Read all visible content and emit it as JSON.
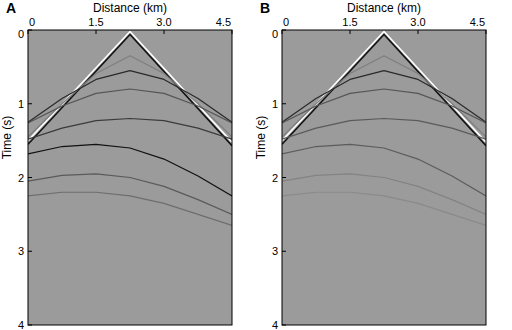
{
  "chart_data": [
    {
      "type": "line",
      "title": "A",
      "xlabel": "Distance (km)",
      "ylabel": "Time (s)",
      "xlim": [
        0,
        4.5
      ],
      "ylim": [
        0,
        4
      ],
      "xticks": [
        0,
        1.5,
        {
          "value": 3,
          "label": "3.0"
        },
        4.5
      ],
      "yticks": [
        0,
        1,
        2,
        3,
        4
      ],
      "series": [
        {
          "color": "#ffffff",
          "x": [
            0,
            2.25,
            4.5
          ],
          "values": [
            1.5,
            0.02,
            1.52
          ]
        },
        {
          "color": "#111111",
          "x": [
            0,
            2.25,
            4.5
          ],
          "values": [
            1.55,
            0.06,
            1.57
          ]
        },
        {
          "color": "#7e7e7e",
          "x": [
            0,
            0.75,
            1.5,
            2.25,
            3,
            3.75,
            4.5
          ],
          "values": [
            1.45,
            1.0,
            0.59,
            0.35,
            0.59,
            1.0,
            1.45
          ]
        },
        {
          "color": "#2a2a2a",
          "x": [
            0,
            0.75,
            1.5,
            2.25,
            3,
            3.75,
            4.5
          ],
          "values": [
            1.25,
            0.93,
            0.67,
            0.55,
            0.67,
            0.93,
            1.25
          ]
        },
        {
          "color": "#555555",
          "x": [
            0,
            0.75,
            1.5,
            2.25,
            3,
            3.75,
            4.5
          ],
          "values": [
            1.26,
            1.03,
            0.86,
            0.8,
            0.86,
            1.03,
            1.26
          ]
        },
        {
          "color": "#3a3a3a",
          "x": [
            0,
            0.75,
            1.5,
            2.25,
            3,
            3.75,
            4.5
          ],
          "values": [
            1.48,
            1.33,
            1.23,
            1.2,
            1.23,
            1.33,
            1.48
          ]
        },
        {
          "color": "#111111",
          "x": [
            0,
            0.75,
            1.5,
            2.25,
            3,
            3.75,
            4.5
          ],
          "values": [
            1.68,
            1.58,
            1.55,
            1.6,
            1.75,
            1.98,
            2.25
          ]
        },
        {
          "color": "#5a5a5a",
          "x": [
            0,
            0.75,
            1.5,
            2.25,
            3,
            3.75,
            4.5
          ],
          "values": [
            2.05,
            1.97,
            1.95,
            2.0,
            2.12,
            2.3,
            2.5
          ]
        },
        {
          "color": "#6e6e6e",
          "x": [
            0,
            0.75,
            1.5,
            2.25,
            3,
            3.75,
            4.5
          ],
          "values": [
            2.25,
            2.2,
            2.2,
            2.25,
            2.35,
            2.5,
            2.65
          ]
        }
      ]
    },
    {
      "type": "line",
      "title": "B",
      "xlabel": "Distance (km)",
      "ylabel": "Time (s)",
      "xlim": [
        0,
        4.5
      ],
      "ylim": [
        0,
        4
      ],
      "xticks": [
        0,
        1.5,
        {
          "value": 3,
          "label": "3.0"
        },
        4.5
      ],
      "yticks": [
        0,
        1,
        2,
        3,
        4
      ],
      "series": [
        {
          "color": "#ffffff",
          "x": [
            0,
            2.25,
            4.5
          ],
          "values": [
            1.5,
            0.02,
            1.52
          ]
        },
        {
          "color": "#111111",
          "x": [
            0,
            2.25,
            4.5
          ],
          "values": [
            1.55,
            0.06,
            1.57
          ]
        },
        {
          "color": "#7e7e7e",
          "x": [
            0,
            0.75,
            1.5,
            2.25,
            3,
            3.75,
            4.5
          ],
          "values": [
            1.45,
            1.0,
            0.59,
            0.35,
            0.59,
            1.0,
            1.45
          ]
        },
        {
          "color": "#2a2a2a",
          "x": [
            0,
            0.75,
            1.5,
            2.25,
            3,
            3.75,
            4.5
          ],
          "values": [
            1.25,
            0.93,
            0.67,
            0.55,
            0.67,
            0.93,
            1.25
          ]
        },
        {
          "color": "#555555",
          "x": [
            0,
            0.75,
            1.5,
            2.25,
            3,
            3.75,
            4.5
          ],
          "values": [
            1.26,
            1.03,
            0.86,
            0.8,
            0.86,
            1.03,
            1.26
          ]
        },
        {
          "color": "#5a5a5a",
          "x": [
            0,
            0.75,
            1.5,
            2.25,
            3,
            3.75,
            4.5
          ],
          "values": [
            1.48,
            1.33,
            1.23,
            1.2,
            1.23,
            1.33,
            1.48
          ]
        },
        {
          "color": "#5c5c5c",
          "x": [
            0,
            0.75,
            1.5,
            2.25,
            3,
            3.75,
            4.5
          ],
          "values": [
            1.68,
            1.58,
            1.55,
            1.6,
            1.75,
            1.98,
            2.25
          ]
        },
        {
          "color": "#838383",
          "x": [
            0,
            0.75,
            1.5,
            2.25,
            3,
            3.75,
            4.5
          ],
          "values": [
            2.05,
            1.97,
            1.95,
            2.0,
            2.12,
            2.3,
            2.5
          ]
        },
        {
          "color": "#8a8a8a",
          "x": [
            0,
            0.75,
            1.5,
            2.25,
            3,
            3.75,
            4.5
          ],
          "values": [
            2.25,
            2.2,
            2.2,
            2.25,
            2.35,
            2.5,
            2.65
          ]
        }
      ]
    }
  ]
}
